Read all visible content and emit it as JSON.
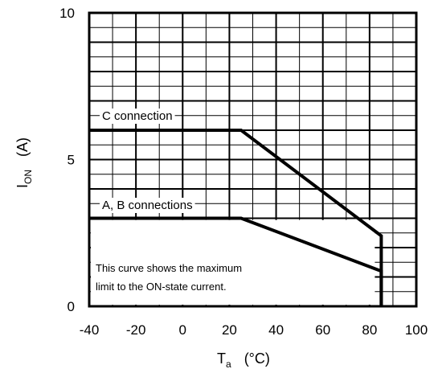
{
  "chart_data": {
    "type": "line",
    "xlabel": {
      "main": "T",
      "sub": "a",
      "unit": "(°C)"
    },
    "ylabel": {
      "main": "I",
      "sub": "ON",
      "unit": "(A)"
    },
    "xlim": [
      -40,
      100
    ],
    "ylim": [
      0,
      10
    ],
    "x_ticks": [
      "-40",
      "-20",
      "0",
      "20",
      "40",
      "60",
      "80",
      "100"
    ],
    "y_ticks": [
      "0",
      "5",
      "10"
    ],
    "grid": true,
    "series": [
      {
        "name": "C connection",
        "x": [
          -40,
          25,
          85,
          85
        ],
        "y": [
          6.0,
          6.0,
          2.4,
          0
        ]
      },
      {
        "name": "A, B connections",
        "x": [
          -40,
          25,
          85,
          85
        ],
        "y": [
          3.0,
          3.0,
          1.2,
          0
        ]
      }
    ],
    "note": {
      "line1": "This curve shows the maximum",
      "line2": "limit to the ON-state current."
    }
  }
}
